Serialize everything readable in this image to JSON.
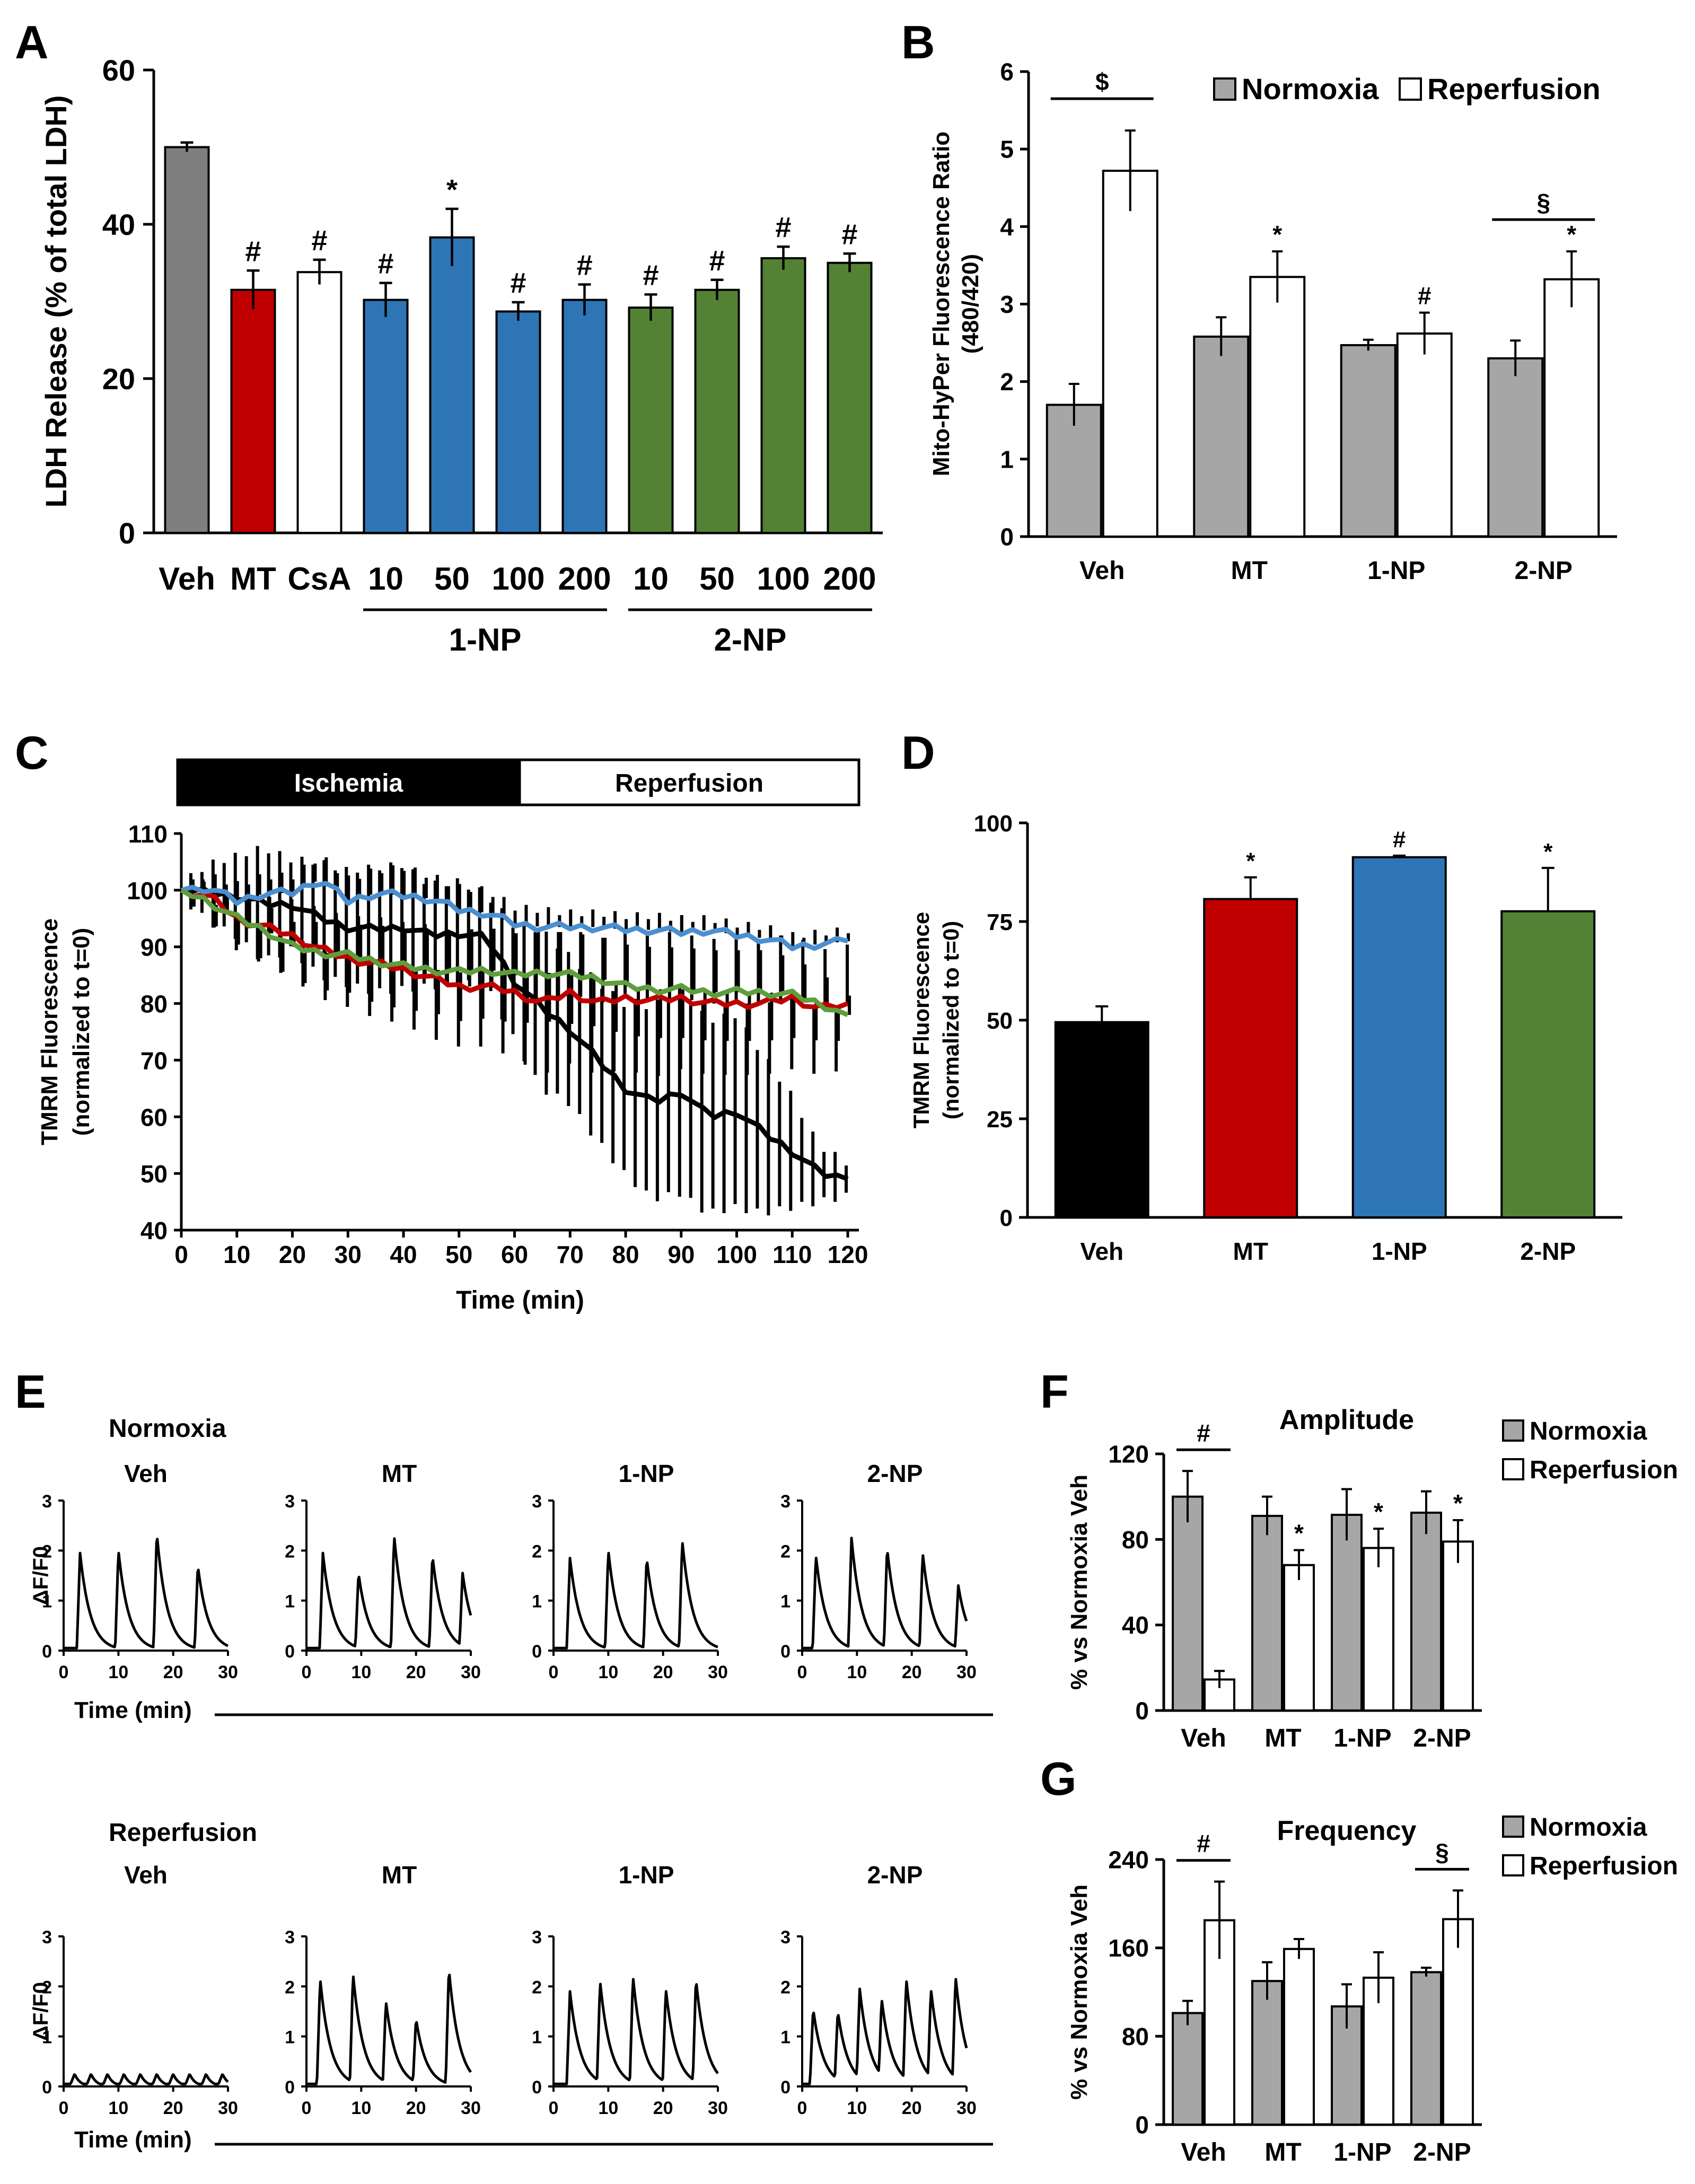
{
  "colors": {
    "veh": "#7f7f7f",
    "mt": "#c00000",
    "csa": "#ffffff",
    "np1": "#2e75b6",
    "np2": "#548235",
    "normoxia": "#a6a6a6",
    "reperfusion": "#ffffff",
    "black": "#000000",
    "trace_veh": "#000000",
    "trace_mt": "#c00000",
    "trace_1np": "#4a8fd0",
    "trace_2np": "#5e9e3c"
  },
  "chart_data": [
    {
      "panel": "A",
      "type": "bar",
      "title": "",
      "xlabel": "",
      "ylabel": "LDH Release (% of total LDH)",
      "ylim": [
        0,
        60
      ],
      "yticks": [
        "0",
        "20",
        "40",
        "60"
      ],
      "categories": [
        "Veh",
        "MT",
        "CsA",
        "10",
        "50",
        "100",
        "200",
        "10",
        "50",
        "100",
        "200"
      ],
      "values": [
        50,
        31.5,
        33.8,
        30.2,
        38.3,
        28.7,
        30.2,
        29.2,
        31.5,
        35.6,
        35
      ],
      "errors": [
        0.6,
        2.5,
        1.6,
        2.2,
        3.7,
        1.2,
        2,
        1.7,
        1.3,
        1.5,
        1.2
      ],
      "annotations": [
        "",
        "#",
        "#",
        "#",
        "*",
        "#",
        "#",
        "#",
        "#",
        "#",
        "#"
      ],
      "groups": [
        {
          "label": "1-NP",
          "from": 3,
          "to": 6
        },
        {
          "label": "2-NP",
          "from": 7,
          "to": 10
        }
      ]
    },
    {
      "panel": "B",
      "type": "bar",
      "ylabel": "Mito-HyPer Fluorescence Ratio (480/420)",
      "ylabel_lines": [
        "Mito-HyPer Fluorescence Ratio",
        "(480/420)"
      ],
      "ylim": [
        0,
        6
      ],
      "yticks": [
        "0",
        "1",
        "2",
        "3",
        "4",
        "5",
        "6"
      ],
      "categories": [
        "Veh",
        "MT",
        "1-NP",
        "2-NP"
      ],
      "series": [
        {
          "name": "Normoxia",
          "values": [
            1.7,
            2.58,
            2.47,
            2.3
          ],
          "errors": [
            0.27,
            0.25,
            0.07,
            0.23
          ],
          "annotations": [
            "",
            "",
            "",
            ""
          ]
        },
        {
          "name": "Reperfusion",
          "values": [
            4.72,
            3.35,
            2.62,
            3.32
          ],
          "errors": [
            0.52,
            0.33,
            0.27,
            0.36
          ],
          "annotations": [
            "",
            "*",
            "#",
            "*"
          ]
        }
      ],
      "brackets": [
        "$",
        "",
        "",
        "§"
      ],
      "legend": "top-right"
    },
    {
      "panel": "C",
      "type": "line",
      "xlabel": "Time (min)",
      "ylabel": "TMRM Fluorescence (normalized to t=0)",
      "ylabel_lines": [
        "TMRM Fluorescence",
        "(normalized to t=0)"
      ],
      "xlim": [
        0,
        122
      ],
      "ylim": [
        40,
        110
      ],
      "xticks": [
        "0",
        "10",
        "20",
        "30",
        "40",
        "50",
        "60",
        "70",
        "80",
        "90",
        "100",
        "110",
        "120"
      ],
      "yticks": [
        "40",
        "50",
        "60",
        "70",
        "80",
        "90",
        "100",
        "110"
      ],
      "phases": [
        {
          "label": "Ischemia",
          "from": 0,
          "to": 60
        },
        {
          "label": "Reperfusion",
          "from": 60,
          "to": 120
        }
      ],
      "series": [
        {
          "name": "Veh",
          "x": [
            0,
            5,
            10,
            15,
            20,
            25,
            30,
            35,
            40,
            45,
            50,
            55,
            60,
            65,
            70,
            75,
            80,
            85,
            90,
            95,
            100,
            105,
            110,
            115,
            120
          ],
          "y": [
            100,
            99.5,
            99,
            97.5,
            97.5,
            95,
            93.5,
            93,
            93.5,
            92,
            92.5,
            91.5,
            84,
            79,
            75.5,
            70,
            65,
            62.5,
            64.5,
            60,
            61,
            57,
            54,
            50,
            49
          ],
          "err": [
            1,
            5,
            7,
            10,
            8,
            10,
            10,
            11,
            11,
            9,
            9,
            8,
            10,
            14,
            13,
            14,
            15,
            17,
            18,
            17,
            17,
            14,
            10,
            5,
            3
          ]
        },
        {
          "name": "MT",
          "x": [
            0,
            5,
            10,
            15,
            20,
            25,
            30,
            35,
            40,
            45,
            50,
            55,
            60,
            65,
            70,
            75,
            80,
            85,
            90,
            95,
            100,
            105,
            110,
            115,
            120
          ],
          "y": [
            100,
            99,
            95,
            93.5,
            92,
            89.5,
            88,
            87,
            86,
            84.5,
            83,
            83,
            82,
            80,
            82,
            80,
            81,
            80.5,
            81,
            80,
            80,
            80,
            81,
            79,
            80
          ],
          "err": [
            0.5,
            4,
            5,
            6,
            7,
            8,
            8,
            9,
            9,
            10,
            10,
            10,
            11,
            12,
            12,
            12,
            12,
            13,
            12,
            12,
            12,
            12,
            12,
            11,
            11
          ]
        },
        {
          "name": "1-NP",
          "x": [
            0,
            5,
            10,
            15,
            20,
            25,
            30,
            35,
            40,
            45,
            50,
            55,
            60,
            65,
            70,
            75,
            80,
            85,
            90,
            95,
            100,
            105,
            110,
            115,
            120
          ],
          "y": [
            100,
            100.5,
            98,
            99.5,
            99.5,
            102,
            98,
            99.5,
            99,
            98.5,
            96.5,
            96,
            94,
            93.5,
            93.5,
            93.5,
            93,
            93,
            92.5,
            93,
            92,
            91.5,
            90,
            90.5,
            91
          ],
          "err": [
            0.5,
            2,
            3,
            3,
            3,
            4,
            4,
            4,
            5,
            4,
            4,
            4,
            3,
            3,
            2.5,
            2.5,
            2.5,
            2.5,
            2.5,
            2,
            2,
            2,
            2,
            2,
            2
          ]
        },
        {
          "name": "2-NP",
          "x": [
            0,
            5,
            10,
            15,
            20,
            25,
            30,
            35,
            40,
            45,
            50,
            55,
            60,
            65,
            70,
            75,
            80,
            85,
            90,
            95,
            100,
            105,
            110,
            115,
            120
          ],
          "y": [
            100,
            98,
            95,
            93,
            90,
            89,
            88.5,
            87.5,
            86.5,
            86,
            85.5,
            86,
            85,
            85.5,
            85,
            84.5,
            83,
            82.5,
            82.5,
            82,
            82,
            82,
            81.5,
            80,
            78
          ],
          "err": [
            0.5,
            3,
            4,
            5,
            5,
            6,
            6,
            7,
            7,
            7,
            8,
            8,
            8,
            8,
            8,
            8,
            8,
            8,
            8,
            8,
            8,
            8,
            7,
            6,
            4
          ]
        }
      ]
    },
    {
      "panel": "D",
      "type": "bar",
      "ylabel": "TMRM Fluorescence (normalized to t=0)",
      "ylabel_lines": [
        "TMRM Fluorescence",
        "(normalized to t=0)"
      ],
      "ylim": [
        0,
        100
      ],
      "yticks": [
        "0",
        "25",
        "50",
        "75",
        "100"
      ],
      "categories": [
        "Veh",
        "MT",
        "1-NP",
        "2-NP"
      ],
      "values": [
        49.5,
        80.7,
        91.3,
        77.6
      ],
      "errors": [
        4,
        5.5,
        0.4,
        11
      ],
      "annotations": [
        "",
        "*",
        "#",
        "*"
      ]
    },
    {
      "panel": "E",
      "type": "line",
      "ylabel": "ΔF/F0",
      "xlabel": "Time (min)",
      "xlim": [
        0,
        30
      ],
      "ylim": [
        0,
        3
      ],
      "xticks": [
        "0",
        "10",
        "20",
        "30"
      ],
      "yticks": [
        "0",
        "1",
        "2",
        "3"
      ],
      "rows": [
        {
          "condition": "Normoxia",
          "traces": [
            {
              "name": "Veh",
              "peaks": [
                {
                  "t": 3,
                  "a": 1.95
                },
                {
                  "t": 10,
                  "a": 2.0
                },
                {
                  "t": 17,
                  "a": 2.35
                },
                {
                  "t": 24.5,
                  "a": 1.7
                }
              ]
            },
            {
              "name": "MT",
              "peaks": [
                {
                  "t": 3,
                  "a": 1.95
                },
                {
                  "t": 9.5,
                  "a": 1.55
                },
                {
                  "t": 16,
                  "a": 2.3
                },
                {
                  "t": 23,
                  "a": 1.9
                },
                {
                  "t": 28.5,
                  "a": 1.55
                }
              ]
            },
            {
              "name": "1-NP",
              "peaks": [
                {
                  "t": 3,
                  "a": 1.85
                },
                {
                  "t": 10,
                  "a": 2.0
                },
                {
                  "t": 17,
                  "a": 1.85
                },
                {
                  "t": 23.5,
                  "a": 2.2
                }
              ]
            },
            {
              "name": "2-NP",
              "peaks": [
                {
                  "t": 2.5,
                  "a": 1.9
                },
                {
                  "t": 9,
                  "a": 2.25
                },
                {
                  "t": 15.5,
                  "a": 2.05
                },
                {
                  "t": 22,
                  "a": 1.95
                },
                {
                  "t": 28.5,
                  "a": 1.3
                }
              ]
            }
          ]
        },
        {
          "condition": "Reperfusion",
          "traces": [
            {
              "name": "Veh",
              "peaks": [
                {
                  "t": 2,
                  "a": 0.25
                },
                {
                  "t": 5,
                  "a": 0.25
                },
                {
                  "t": 8,
                  "a": 0.25
                },
                {
                  "t": 11,
                  "a": 0.25
                },
                {
                  "t": 14,
                  "a": 0.25
                },
                {
                  "t": 17,
                  "a": 0.25
                },
                {
                  "t": 20,
                  "a": 0.25
                },
                {
                  "t": 23,
                  "a": 0.25
                },
                {
                  "t": 26,
                  "a": 0.25
                },
                {
                  "t": 29,
                  "a": 0.25
                }
              ]
            },
            {
              "name": "MT",
              "peaks": [
                {
                  "t": 2.5,
                  "a": 2.15
                },
                {
                  "t": 8.5,
                  "a": 2.25
                },
                {
                  "t": 14.5,
                  "a": 1.7
                },
                {
                  "t": 20,
                  "a": 1.35
                },
                {
                  "t": 26,
                  "a": 2.35
                }
              ]
            },
            {
              "name": "1-NP",
              "peaks": [
                {
                  "t": 3,
                  "a": 1.9
                },
                {
                  "t": 8.5,
                  "a": 2.1
                },
                {
                  "t": 14.5,
                  "a": 2.2
                },
                {
                  "t": 20.5,
                  "a": 1.95
                },
                {
                  "t": 26,
                  "a": 2.15
                }
              ]
            },
            {
              "name": "2-NP",
              "peaks": [
                {
                  "t": 2,
                  "a": 1.55
                },
                {
                  "t": 6.5,
                  "a": 1.5
                },
                {
                  "t": 10.5,
                  "a": 1.95
                },
                {
                  "t": 14.5,
                  "a": 1.75
                },
                {
                  "t": 19,
                  "a": 2.15
                },
                {
                  "t": 23.5,
                  "a": 1.95
                },
                {
                  "t": 28,
                  "a": 2.2
                }
              ]
            }
          ]
        }
      ]
    },
    {
      "panel": "F",
      "type": "bar",
      "title": "Amplitude",
      "ylabel": "% vs Normoxia Veh",
      "ylim": [
        0,
        120
      ],
      "yticks": [
        "0",
        "40",
        "80",
        "120"
      ],
      "categories": [
        "Veh",
        "MT",
        "1-NP",
        "2-NP"
      ],
      "series": [
        {
          "name": "Normoxia",
          "values": [
            100,
            91,
            91.5,
            92.5
          ],
          "errors": [
            12,
            9,
            12,
            10
          ],
          "annotations": [
            "",
            "",
            "",
            ""
          ]
        },
        {
          "name": "Reperfusion",
          "values": [
            14.5,
            68,
            76,
            79
          ],
          "errors": [
            4,
            7,
            9,
            10
          ],
          "annotations": [
            "",
            "*",
            "*",
            "*"
          ]
        }
      ],
      "brackets": [
        "#",
        "",
        "",
        ""
      ],
      "legend": "top-right"
    },
    {
      "panel": "G",
      "type": "bar",
      "title": "Frequency",
      "ylabel": "% vs Normoxia Veh",
      "ylim": [
        0,
        240
      ],
      "yticks": [
        "0",
        "80",
        "160",
        "240"
      ],
      "categories": [
        "Veh",
        "MT",
        "1-NP",
        "2-NP"
      ],
      "series": [
        {
          "name": "Normoxia",
          "values": [
            101,
            130,
            107,
            138
          ],
          "errors": [
            11,
            17,
            20,
            4
          ],
          "annotations": [
            "",
            "",
            "",
            ""
          ]
        },
        {
          "name": "Reperfusion",
          "values": [
            185,
            159,
            133,
            186
          ],
          "errors": [
            35,
            9,
            23,
            26
          ],
          "annotations": [
            "",
            "",
            "",
            ""
          ]
        }
      ],
      "brackets": [
        "#",
        "",
        "",
        "§"
      ],
      "legend": "top-right"
    }
  ]
}
